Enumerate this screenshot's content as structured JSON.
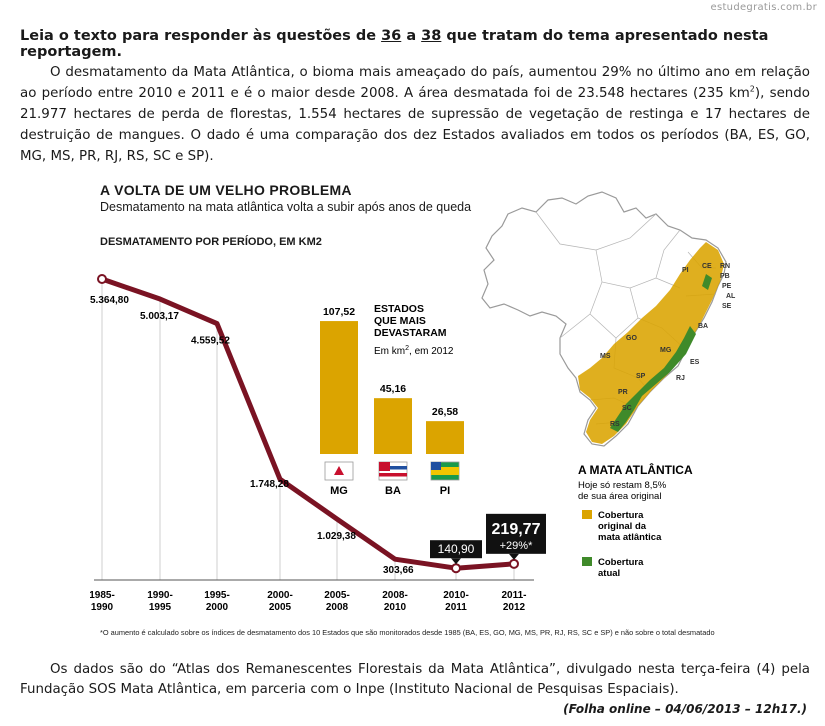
{
  "watermark": "estudegratis.com.br",
  "heading": {
    "prefix": "Leia o texto para responder às questões de ",
    "q_start": "36",
    "middle": " a ",
    "q_end": "38",
    "suffix": " que tratam do tema apresentado nesta reportagem."
  },
  "paragraph1": {
    "text_a": "O desmatamento da Mata Atlântica, o bioma mais ameaçado do país, aumentou 29% no último ano em relação ao período entre 2010 e 2011 e é o maior desde 2008. A área desmatada foi de 23.548 hectares (235 km",
    "sup": "2",
    "text_b": "), sendo 21.977 hectares de perda de florestas, 1.554 hectares de supressão de vegetação de restinga e 17 hectares de destruição de mangues. O dado é uma comparação dos dez Estados avaliados em todos os períodos (BA, ES, GO, MG, MS, PR, RJ, RS, SC e SP)."
  },
  "infographic": {
    "title": "A VOLTA DE UM VELHO PROBLEMA",
    "subtitle": "Desmatamento na mata atlântica volta a subir após anos de queda",
    "period_label": "DESMATAMENTO POR PERÍODO, EM KM2",
    "footnote": "*O aumento é calculado sobre os índices de desmatamento dos 10 Estados que são monitorados desde 1985 (BA, ES, GO, MG, MS, PR, RJ, RS, SC e SP) e não sobre o total desmatado",
    "line_color": "#7a1323",
    "bar_color": "#dba400",
    "states_title_lines": [
      "ESTADOS",
      "QUE MAIS",
      "DEVASTARAM"
    ],
    "states_unit_prefix": "Em km",
    "states_unit_sup": "2",
    "states_unit_suffix": ", em 2012",
    "map": {
      "title": "A MATA ATLÂNTICA",
      "subtitle_lines": [
        "Hoje só restam 8,5%",
        "de sua área original"
      ],
      "state_labels": [
        "PI",
        "CE",
        "RN",
        "PB",
        "PE",
        "AL",
        "SE",
        "BA",
        "GO",
        "MG",
        "ES",
        "MS",
        "SP",
        "RJ",
        "PR",
        "SC",
        "RS"
      ],
      "legend": [
        {
          "color": "#dba400",
          "lines": [
            "Cobertura",
            "original da",
            "mata atlântica"
          ]
        },
        {
          "color": "#3f8a2a",
          "lines": [
            "Cobertura",
            "atual"
          ]
        }
      ]
    }
  },
  "chart_data": [
    {
      "type": "line",
      "title": "DESMATAMENTO POR PERÍODO, EM KM2",
      "categories": [
        "1985-1990",
        "1990-1995",
        "1995-2000",
        "2000-2005",
        "2005-2008",
        "2008-2010",
        "2010-2011",
        "2011-2012"
      ],
      "x_label_lines": [
        [
          "1985-",
          "1990"
        ],
        [
          "1990-",
          "1995"
        ],
        [
          "1995-",
          "2000"
        ],
        [
          "2000-",
          "2005"
        ],
        [
          "2005-",
          "2008"
        ],
        [
          "2008-",
          "2010"
        ],
        [
          "2010-",
          "2011"
        ],
        [
          "2011-",
          "2012"
        ]
      ],
      "values": [
        5364.8,
        5003.17,
        4559.52,
        1748.28,
        1029.38,
        303.66,
        140.9,
        219.77
      ],
      "value_labels": [
        "5.364,80",
        "5.003,17",
        "4.559,52",
        "1.748,28",
        "1.029,38",
        "303,66",
        "140,90",
        "219,77"
      ],
      "highlight_note": "+29%*",
      "ylim": [
        0,
        5600
      ],
      "grid": "vertical"
    },
    {
      "type": "bar",
      "title": "ESTADOS QUE MAIS DEVASTARAM",
      "categories": [
        "MG",
        "BA",
        "PI"
      ],
      "values": [
        107.52,
        45.16,
        26.58
      ],
      "value_labels": [
        "107,52",
        "45,16",
        "26,58"
      ],
      "ylim": [
        0,
        110
      ]
    }
  ],
  "paragraph2": "Os dados são do “Atlas dos Remanescentes Florestais da Mata Atlântica”, divulgado nesta terça-feira (4) pela Fundação SOS Mata Atlântica, em parceria com o Inpe (Instituto Nacional de Pesquisas Espaciais).",
  "source": "(Folha online – 04/06/2013 – 12h17.)"
}
